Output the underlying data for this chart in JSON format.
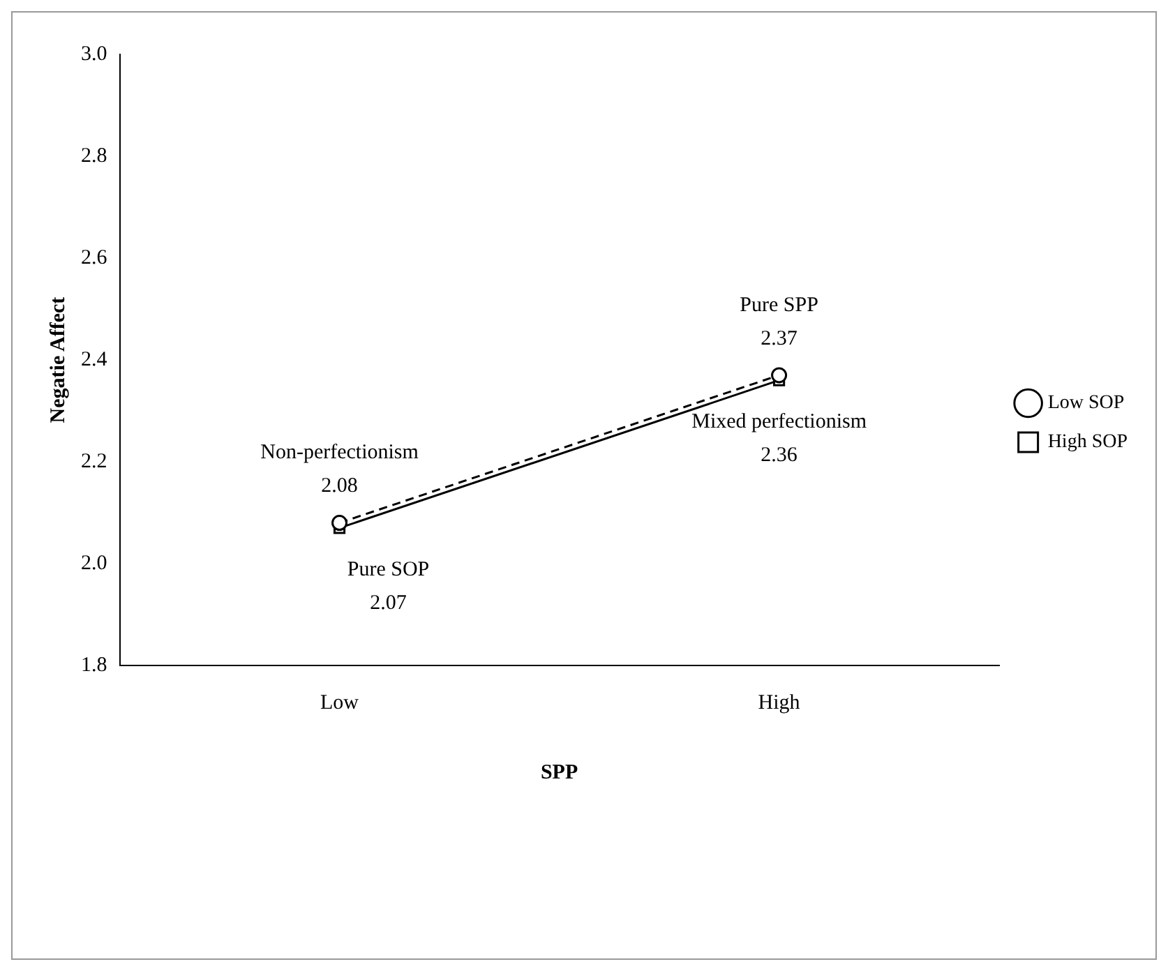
{
  "chart_data": {
    "type": "line",
    "xlabel": "SPP",
    "ylabel": "Negatie Affect",
    "categories": [
      "Low",
      "High"
    ],
    "series": [
      {
        "name": "Low SOP",
        "color": "#000000",
        "values": [
          2.08,
          2.37
        ],
        "line_style": "dashed",
        "marker": "circle"
      },
      {
        "name": "High SOP",
        "color": "#000000",
        "values": [
          2.07,
          2.36
        ],
        "line_style": "solid",
        "marker": "square"
      }
    ],
    "ylim": [
      1.8,
      3.0
    ],
    "yticks": [
      {
        "value": 1.8,
        "label": "1.8"
      },
      {
        "value": 2.0,
        "label": "2.0"
      },
      {
        "value": 2.2,
        "label": "2.2"
      },
      {
        "value": 2.4,
        "label": "2.4"
      },
      {
        "value": 2.6,
        "label": "2.6"
      },
      {
        "value": 2.8,
        "label": "2.8"
      },
      {
        "value": 3.0,
        "label": "3.0"
      }
    ],
    "grid": false,
    "legend": "right",
    "data_labels": true,
    "annotations": [
      {
        "text": "Non-perfectionism",
        "x": "Low",
        "y": 2.08
      },
      {
        "text": "Pure SOP",
        "x": "Low",
        "y": 2.07
      },
      {
        "text": "Pure SPP",
        "x": "High",
        "y": 2.37
      },
      {
        "text": "Mixed perfectionism",
        "x": "High",
        "y": 2.36
      }
    ]
  }
}
